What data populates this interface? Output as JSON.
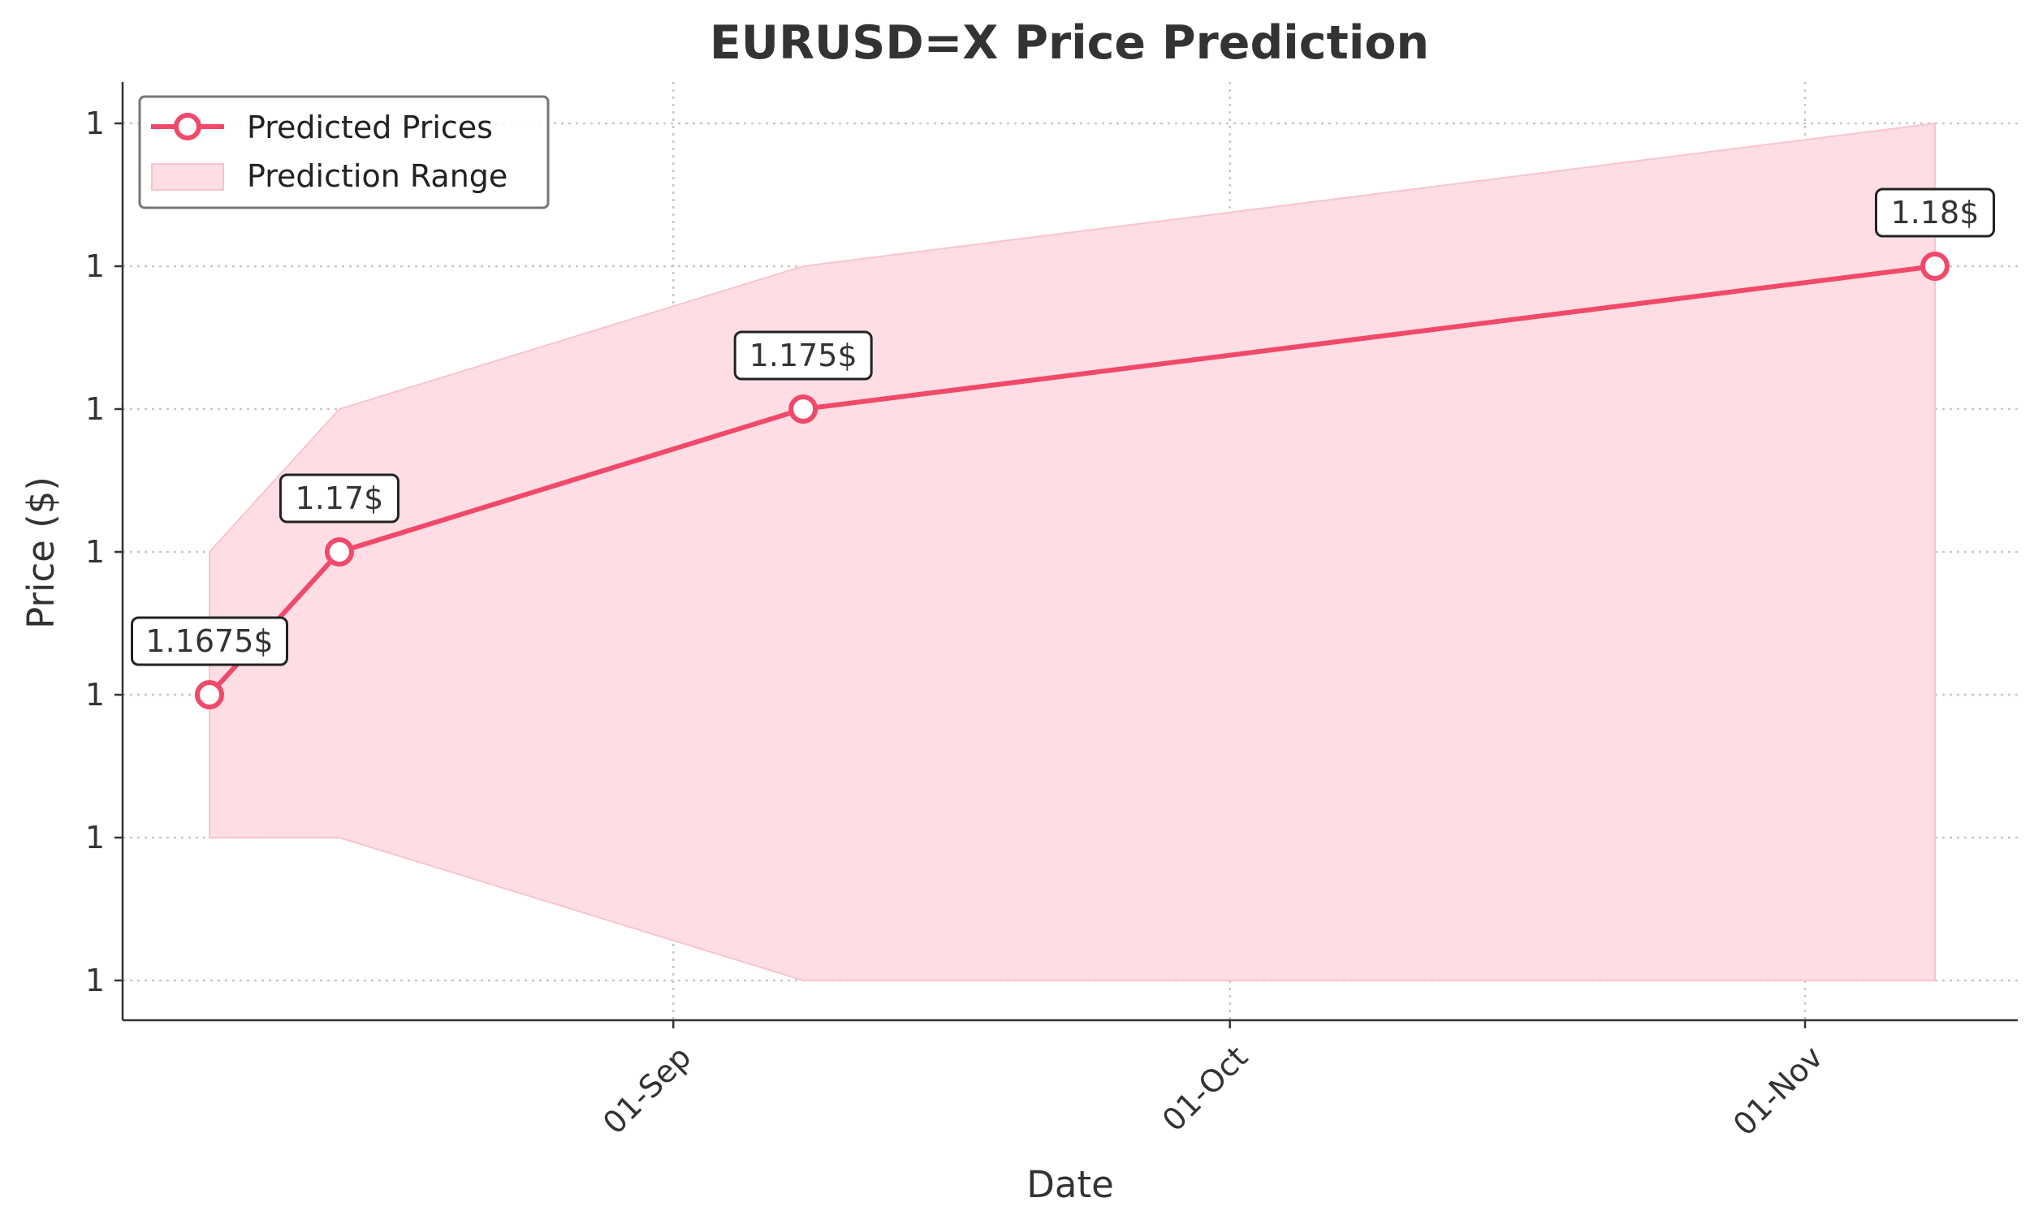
{
  "chart_data": {
    "type": "line",
    "title": "EURUSD=X Price Prediction",
    "xlabel": "Date",
    "ylabel": "Price ($)",
    "x_dates": [
      "2025-08-07",
      "2025-08-14",
      "2025-09-08",
      "2025-11-08"
    ],
    "x_ticks": [
      {
        "date": "2025-09-01",
        "label": "01-Sep"
      },
      {
        "date": "2025-10-01",
        "label": "01-Oct"
      },
      {
        "date": "2025-11-01",
        "label": "01-Nov"
      }
    ],
    "y_ticks": [
      1.1625,
      1.165,
      1.1675,
      1.17,
      1.175,
      1.18,
      1.185
    ],
    "y_tick_labels": [
      "1",
      "1",
      "1",
      "1",
      "1",
      "1",
      "1"
    ],
    "series": [
      {
        "name": "Predicted Prices",
        "values": [
          1.1675,
          1.17,
          1.175,
          1.18
        ],
        "labels": [
          "1.1675$",
          "1.17$",
          "1.175$",
          "1.18$"
        ],
        "color": "#f0496a"
      }
    ],
    "range": {
      "name": "Prediction Range",
      "lower": [
        1.165,
        1.165,
        1.1625,
        1.1625
      ],
      "upper": [
        1.17,
        1.175,
        1.18,
        1.185
      ],
      "color": "#ffdde4"
    },
    "grid": true,
    "legend_position": "top-left"
  }
}
